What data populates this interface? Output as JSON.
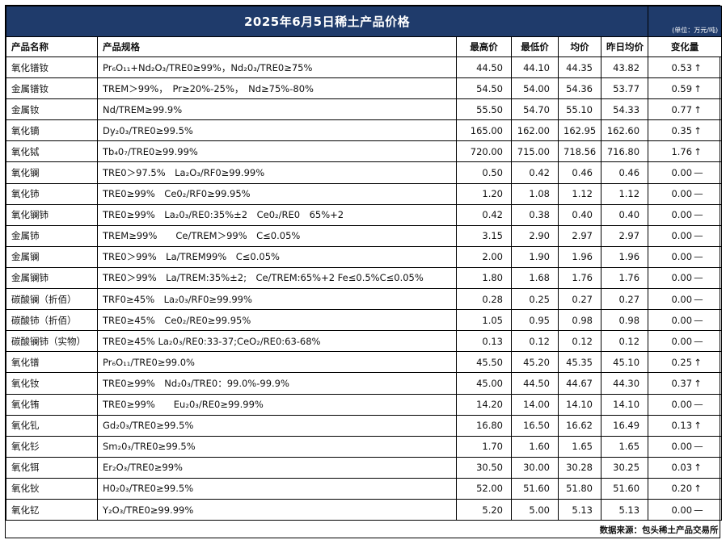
{
  "title": "2025年6月5日稀土产品价格",
  "unit": "(单位：万元/吨)",
  "headers": {
    "name": "产品名称",
    "spec": "产品规格",
    "high": "最高价",
    "low": "最低价",
    "avg": "均价",
    "prev_avg": "昨日均价",
    "change": "变化量"
  },
  "rows": [
    {
      "name": "氧化镨钕",
      "spec": "Pr₆O₁₁+Nd₂O₃/TRE0≥99%，Nd₂0₃/TRE0≥75%",
      "high": "44.50",
      "low": "44.10",
      "avg": "44.35",
      "prev_avg": "43.82",
      "change": "0.53",
      "dir": "↑"
    },
    {
      "name": "金属镨钕",
      "spec": "TREM＞99%，　Pr≥20%-25%，　Nd≥75%-80%",
      "high": "54.50",
      "low": "54.00",
      "avg": "54.36",
      "prev_avg": "53.77",
      "change": "0.59",
      "dir": "↑"
    },
    {
      "name": "金属钕",
      "spec": "Nd/TREM≥99.9%",
      "high": "55.50",
      "low": "54.70",
      "avg": "55.10",
      "prev_avg": "54.33",
      "change": "0.77",
      "dir": "↑"
    },
    {
      "name": "氧化镝",
      "spec": "Dy₂0₃/TRE0≥99.5%",
      "high": "165.00",
      "low": "162.00",
      "avg": "162.95",
      "prev_avg": "162.60",
      "change": "0.35",
      "dir": "↑"
    },
    {
      "name": "氧化铽",
      "spec": "Tb₄0₇/TRE0≥99.99%",
      "high": "720.00",
      "low": "715.00",
      "avg": "718.56",
      "prev_avg": "716.80",
      "change": "1.76",
      "dir": "↑"
    },
    {
      "name": "氧化镧",
      "spec": "TRE0＞97.5%　La₂O₃/RF0≥99.99%",
      "high": "0.50",
      "low": "0.42",
      "avg": "0.46",
      "prev_avg": "0.46",
      "change": "0.00",
      "dir": "—"
    },
    {
      "name": "氧化铈",
      "spec": "TRE0≥99%　Ce0₂/RF0≥99.95%",
      "high": "1.20",
      "low": "1.08",
      "avg": "1.12",
      "prev_avg": "1.12",
      "change": "0.00",
      "dir": "—"
    },
    {
      "name": "氧化镧铈",
      "spec": "TRE0≥99%　La₂0₃/RE0:35%±2　Ce0₂/RE0　65%+2",
      "high": "0.42",
      "low": "0.38",
      "avg": "0.40",
      "prev_avg": "0.40",
      "change": "0.00",
      "dir": "—"
    },
    {
      "name": "金属铈",
      "spec": "TREM≥99%　　Ce/TREM＞99%　C≤0.05%",
      "high": "3.15",
      "low": "2.90",
      "avg": "2.97",
      "prev_avg": "2.97",
      "change": "0.00",
      "dir": "—"
    },
    {
      "name": "金属镧",
      "spec": "TRE0＞99%　La/TREM99%　C≤0.05%",
      "high": "2.00",
      "low": "1.90",
      "avg": "1.96",
      "prev_avg": "1.96",
      "change": "0.00",
      "dir": "—"
    },
    {
      "name": "金属镧铈",
      "spec": "TRE0＞99%　La/TREM:35%±2;　Ce/TREM:65%+2 Fe≤0.5%C≤0.05%",
      "high": "1.80",
      "low": "1.68",
      "avg": "1.76",
      "prev_avg": "1.76",
      "change": "0.00",
      "dir": "—"
    },
    {
      "name": "碳酸镧（折佰）",
      "spec": "TRF0≥45%　La₂0₃/RF0≥99.99%",
      "high": "0.28",
      "low": "0.25",
      "avg": "0.27",
      "prev_avg": "0.27",
      "change": "0.00",
      "dir": "—"
    },
    {
      "name": "碳酸铈（折佰）",
      "spec": "TRE0≥45%　Ce0₂/RE0≥99.95%",
      "high": "1.05",
      "low": "0.95",
      "avg": "0.98",
      "prev_avg": "0.98",
      "change": "0.00",
      "dir": "—"
    },
    {
      "name": "碳酸镧铈（实物）",
      "spec": "TRE0≥45% La₂0₃/RE0:33-37;CeO₂/RE0:63-68%",
      "high": "0.13",
      "low": "0.12",
      "avg": "0.12",
      "prev_avg": "0.12",
      "change": "0.00",
      "dir": "—"
    },
    {
      "name": "氧化镨",
      "spec": "Pr₆O₁₁/TRE0≥99.0%",
      "high": "45.50",
      "low": "45.20",
      "avg": "45.35",
      "prev_avg": "45.10",
      "change": "0.25",
      "dir": "↑"
    },
    {
      "name": "氧化钕",
      "spec": "TRE0≥99%　Nd₂0₃/TRE0：99.0%-99.9%",
      "high": "45.00",
      "low": "44.50",
      "avg": "44.67",
      "prev_avg": "44.30",
      "change": "0.37",
      "dir": "↑"
    },
    {
      "name": "氧化铕",
      "spec": "TRE0≥99%　　Eu₂0₃/RE0≥99.99%",
      "high": "14.20",
      "low": "14.00",
      "avg": "14.10",
      "prev_avg": "14.10",
      "change": "0.00",
      "dir": "—"
    },
    {
      "name": "氧化钆",
      "spec": "Gd₂0₃/TRE0≥99.5%",
      "high": "16.80",
      "low": "16.50",
      "avg": "16.62",
      "prev_avg": "16.49",
      "change": "0.13",
      "dir": "↑"
    },
    {
      "name": "氧化钐",
      "spec": "Sm₂0₃/TRE0≥99.5%",
      "high": "1.70",
      "low": "1.60",
      "avg": "1.65",
      "prev_avg": "1.65",
      "change": "0.00",
      "dir": "—"
    },
    {
      "name": "氧化铒",
      "spec": "Er₂O₃/TRE0≥99%",
      "high": "30.50",
      "low": "30.00",
      "avg": "30.28",
      "prev_avg": "30.25",
      "change": "0.03",
      "dir": "↑"
    },
    {
      "name": "氧化钬",
      "spec": "H0₂0₃/TRE0≥99.5%",
      "high": "52.00",
      "low": "51.60",
      "avg": "51.80",
      "prev_avg": "51.60",
      "change": "0.20",
      "dir": "↑"
    },
    {
      "name": "氧化钇",
      "spec": "Y₂O₃/TRE0≥99.99%",
      "high": "5.20",
      "low": "5.00",
      "avg": "5.13",
      "prev_avg": "5.13",
      "change": "0.00",
      "dir": "—"
    }
  ],
  "footer": "数据来源：包头稀土产品交易所"
}
